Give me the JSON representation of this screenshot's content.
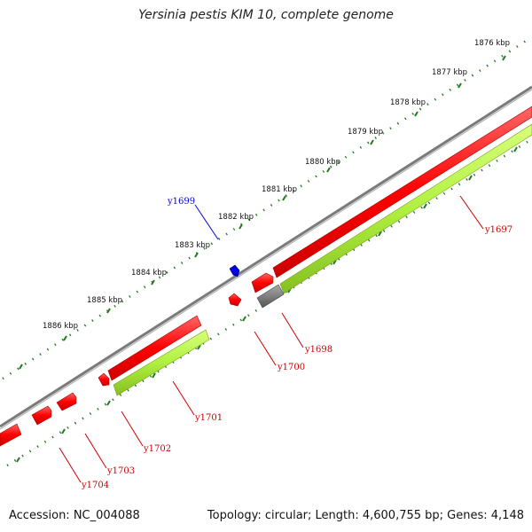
{
  "title": "Yersinia pestis KIM 10, complete genome",
  "footer": {
    "accession": "Accession: NC_004088",
    "topology": "Topology: circular; Length: 4,600,755 bp; Genes: 4,148"
  },
  "colors": {
    "backbone": "#8c8c8c",
    "ruler": "#1f7a1f",
    "gene_forward": "#ff0000",
    "gene_reverse": "#aaee33",
    "gene_other": "#666666",
    "highlight": "#0000dd",
    "label": "#cc0000"
  },
  "ruler": [
    "1876 kbp",
    "1877 kbp",
    "1878 kbp",
    "1879 kbp",
    "1880 kbp",
    "1881 kbp",
    "1882 kbp",
    "1883 kbp",
    "1884 kbp",
    "1885 kbp",
    "1886 kbp"
  ],
  "genes": [
    "y1697",
    "y1698",
    "y1699",
    "y1700",
    "y1701",
    "y1702",
    "y1703",
    "y1704"
  ]
}
